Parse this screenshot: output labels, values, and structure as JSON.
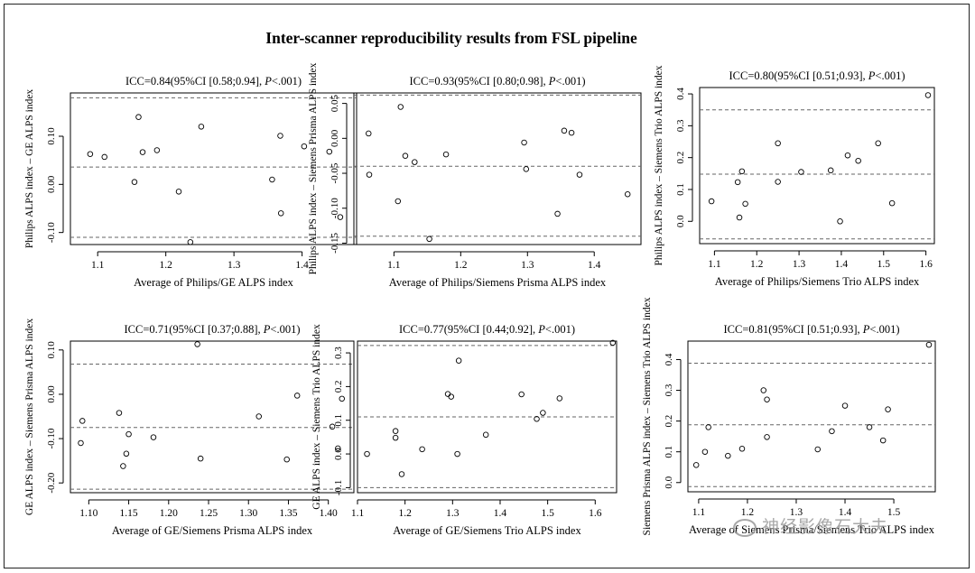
{
  "title": "Inter-scanner reproducibility results from FSL pipeline",
  "watermark": "神经影像石大夫",
  "chart_data": [
    {
      "type": "scatter",
      "subtitle_prefix": "ICC=0.84(95%CI [0.58;0.94], ",
      "subtitle_p": "P",
      "subtitle_suffix": "<.001)",
      "xlabel": "Average of Philips/GE ALPS index",
      "ylabel": "Philips ALPS index – GE ALPS index",
      "xlim": [
        1.06,
        1.48
      ],
      "ylim": [
        -0.125,
        0.19
      ],
      "xticks": [
        1.1,
        1.2,
        1.3,
        1.4
      ],
      "xtick_labels": [
        "1.1",
        "1.2",
        "1.3",
        "1.4"
      ],
      "yticks": [
        -0.1,
        0.0,
        0.1
      ],
      "ytick_labels": [
        "-0.10",
        "0.00",
        "0.10"
      ],
      "hlines": [
        0.036,
        -0.11,
        0.18
      ],
      "points": [
        [
          1.089,
          0.063
        ],
        [
          1.11,
          0.057
        ],
        [
          1.154,
          0.005
        ],
        [
          1.16,
          0.14
        ],
        [
          1.166,
          0.067
        ],
        [
          1.187,
          0.071
        ],
        [
          1.219,
          -0.015
        ],
        [
          1.236,
          -0.12
        ],
        [
          1.252,
          0.12
        ],
        [
          1.356,
          0.01
        ],
        [
          1.368,
          0.101
        ],
        [
          1.369,
          -0.06
        ],
        [
          1.403,
          0.079
        ],
        [
          1.44,
          0.068
        ],
        [
          1.456,
          -0.068
        ]
      ]
    },
    {
      "type": "scatter",
      "subtitle_prefix": "ICC=0.93(95%CI [0.80;0.98], ",
      "subtitle_p": "P",
      "subtitle_suffix": "<.001)",
      "xlabel": "Average of Philips/Siemens Prisma ALPS index",
      "ylabel": "Philips ALPS index – Siemens Prisma ALPS index",
      "xlim": [
        1.04,
        1.47
      ],
      "ylim": [
        -0.152,
        0.065
      ],
      "xticks": [
        1.1,
        1.2,
        1.3,
        1.4
      ],
      "xtick_labels": [
        "1.1",
        "1.2",
        "1.3",
        "1.4"
      ],
      "yticks": [
        -0.15,
        -0.1,
        -0.05,
        0.0,
        0.05
      ],
      "ytick_labels": [
        "-0.15",
        "-0.10",
        "-0.05",
        "0.00",
        "0.05"
      ],
      "hlines": [
        0.062,
        -0.04,
        -0.14
      ],
      "points": [
        [
          1.062,
          0.007
        ],
        [
          1.063,
          -0.052
        ],
        [
          1.106,
          -0.09
        ],
        [
          1.11,
          0.045
        ],
        [
          1.117,
          -0.025
        ],
        [
          1.131,
          -0.034
        ],
        [
          1.153,
          -0.144
        ],
        [
          1.178,
          -0.023
        ],
        [
          1.295,
          -0.006
        ],
        [
          1.298,
          -0.044
        ],
        [
          1.345,
          -0.108
        ],
        [
          1.355,
          0.011
        ],
        [
          1.366,
          0.008
        ],
        [
          1.378,
          -0.052
        ],
        [
          1.45,
          -0.08
        ]
      ]
    },
    {
      "type": "scatter",
      "subtitle_prefix": "ICC=0.80(95%CI [0.51;0.93], ",
      "subtitle_p": "P",
      "subtitle_suffix": "<.001)",
      "xlabel": "Average of Philips/Siemens Trio ALPS index",
      "ylabel": "Philips ALPS index – Siemens Trio ALPS index",
      "xlim": [
        1.065,
        1.62
      ],
      "ylim": [
        -0.07,
        0.42
      ],
      "xticks": [
        1.1,
        1.2,
        1.3,
        1.4,
        1.5,
        1.6
      ],
      "xtick_labels": [
        "1.1",
        "1.2",
        "1.3",
        "1.4",
        "1.5",
        "1.6"
      ],
      "yticks": [
        0.0,
        0.1,
        0.2,
        0.3,
        0.4
      ],
      "ytick_labels": [
        "0.0",
        "0.1",
        "0.2",
        "0.3",
        "0.4"
      ],
      "hlines": [
        0.35,
        0.148,
        -0.055
      ],
      "points": [
        [
          1.093,
          0.063
        ],
        [
          1.155,
          0.123
        ],
        [
          1.159,
          0.012
        ],
        [
          1.165,
          0.157
        ],
        [
          1.173,
          0.055
        ],
        [
          1.25,
          0.245
        ],
        [
          1.25,
          0.124
        ],
        [
          1.305,
          0.155
        ],
        [
          1.375,
          0.16
        ],
        [
          1.397,
          0.0
        ],
        [
          1.415,
          0.207
        ],
        [
          1.44,
          0.19
        ],
        [
          1.487,
          0.245
        ],
        [
          1.52,
          0.057
        ],
        [
          1.605,
          0.396
        ]
      ]
    },
    {
      "type": "scatter",
      "subtitle_prefix": "ICC=0.71(95%CI [0.37;0.88], ",
      "subtitle_p": "P",
      "subtitle_suffix": "<.001)",
      "xlabel": "Average of GE/Siemens Prisma ALPS index",
      "ylabel": "GE ALPS index – Siemens Prisma ALPS index",
      "xlim": [
        1.077,
        1.432
      ],
      "ylim": [
        -0.222,
        0.12
      ],
      "xticks": [
        1.1,
        1.15,
        1.2,
        1.25,
        1.3,
        1.35,
        1.4
      ],
      "xtick_labels": [
        "1.10",
        "1.15",
        "1.20",
        "1.25",
        "1.30",
        "1.35",
        "1.40"
      ],
      "yticks": [
        -0.2,
        -0.1,
        0.0,
        0.1
      ],
      "ytick_labels": [
        "-0.20",
        "-0.10",
        "0.00",
        "0.10"
      ],
      "hlines": [
        0.068,
        -0.075,
        -0.214
      ],
      "points": [
        [
          1.09,
          -0.11
        ],
        [
          1.092,
          -0.06
        ],
        [
          1.138,
          -0.042
        ],
        [
          1.143,
          -0.162
        ],
        [
          1.147,
          -0.134
        ],
        [
          1.15,
          -0.09
        ],
        [
          1.181,
          -0.097
        ],
        [
          1.236,
          0.113
        ],
        [
          1.24,
          -0.145
        ],
        [
          1.313,
          -0.05
        ],
        [
          1.348,
          -0.147
        ],
        [
          1.361,
          -0.003
        ],
        [
          1.405,
          -0.073
        ],
        [
          1.412,
          -0.122
        ],
        [
          1.417,
          -0.01
        ]
      ]
    },
    {
      "type": "scatter",
      "subtitle_prefix": "ICC=0.77(95%CI [0.44;0.92], ",
      "subtitle_p": "P",
      "subtitle_suffix": "<.001)",
      "xlabel": "Average of GE/Siemens Trio ALPS index",
      "ylabel": "GE ALPS index – Siemens Trio ALPS index",
      "xlim": [
        1.1,
        1.645
      ],
      "ylim": [
        -0.115,
        0.335
      ],
      "xticks": [
        1.1,
        1.2,
        1.3,
        1.4,
        1.5,
        1.6
      ],
      "xtick_labels": [
        "1.1",
        "1.2",
        "1.3",
        "1.4",
        "1.5",
        "1.6"
      ],
      "yticks": [
        -0.1,
        0.0,
        0.1,
        0.2,
        0.3
      ],
      "ytick_labels": [
        "-0.1",
        "0.0",
        "0.1",
        "0.2",
        "0.3"
      ],
      "hlines": [
        0.322,
        0.11,
        -0.1
      ],
      "points": [
        [
          1.12,
          0.0
        ],
        [
          1.18,
          0.068
        ],
        [
          1.18,
          0.048
        ],
        [
          1.193,
          -0.06
        ],
        [
          1.236,
          0.014
        ],
        [
          1.29,
          0.178
        ],
        [
          1.297,
          0.17
        ],
        [
          1.31,
          0.0
        ],
        [
          1.313,
          0.277
        ],
        [
          1.37,
          0.057
        ],
        [
          1.445,
          0.177
        ],
        [
          1.477,
          0.104
        ],
        [
          1.49,
          0.122
        ],
        [
          1.525,
          0.165
        ],
        [
          1.637,
          0.33
        ]
      ]
    },
    {
      "type": "scatter",
      "subtitle_prefix": "ICC=0.81(95%CI [0.51;0.93], ",
      "subtitle_p": "P",
      "subtitle_suffix": "<.001)",
      "xlabel": "Average of Siemens Prisma/Siemens Trio ALPS index",
      "ylabel": "Siemens Prisma ALPS index – Siemens Trio ALPS index",
      "xlim": [
        1.078,
        1.585
      ],
      "ylim": [
        -0.03,
        0.46
      ],
      "xticks": [
        1.1,
        1.2,
        1.3,
        1.4,
        1.5
      ],
      "xtick_labels": [
        "1.1",
        "1.2",
        "1.3",
        "1.4",
        "1.5"
      ],
      "yticks": [
        0.0,
        0.1,
        0.2,
        0.3,
        0.4
      ],
      "ytick_labels": [
        "0.0",
        "0.1",
        "0.2",
        "0.3",
        "0.4"
      ],
      "hlines": [
        0.388,
        0.188,
        -0.013
      ],
      "points": [
        [
          1.095,
          0.057
        ],
        [
          1.113,
          0.1
        ],
        [
          1.12,
          0.18
        ],
        [
          1.16,
          0.087
        ],
        [
          1.189,
          0.11
        ],
        [
          1.233,
          0.3
        ],
        [
          1.24,
          0.27
        ],
        [
          1.24,
          0.148
        ],
        [
          1.344,
          0.108
        ],
        [
          1.373,
          0.167
        ],
        [
          1.4,
          0.25
        ],
        [
          1.45,
          0.18
        ],
        [
          1.478,
          0.137
        ],
        [
          1.488,
          0.238
        ],
        [
          1.572,
          0.448
        ]
      ]
    }
  ]
}
